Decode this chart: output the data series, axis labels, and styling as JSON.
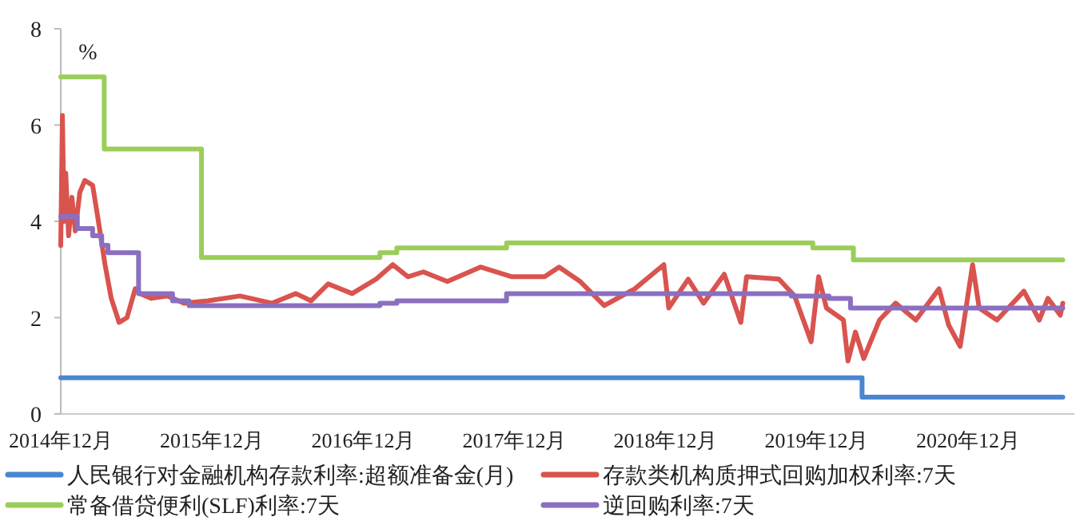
{
  "chart_data": {
    "type": "line",
    "ylabel": "%",
    "ylim": [
      0,
      8
    ],
    "yticks": [
      0,
      2,
      4,
      6,
      8
    ],
    "xlim": [
      "2014-12-01",
      "2021-08-15"
    ],
    "xticks": [
      {
        "value": "2014-12-01",
        "label": "2014年12月"
      },
      {
        "value": "2015-12-01",
        "label": "2015年12月"
      },
      {
        "value": "2016-12-01",
        "label": "2016年12月"
      },
      {
        "value": "2017-12-01",
        "label": "2017年12月"
      },
      {
        "value": "2018-12-01",
        "label": "2018年12月"
      },
      {
        "value": "2019-12-01",
        "label": "2019年12月"
      },
      {
        "value": "2020-12-01",
        "label": "2020年12月"
      }
    ],
    "legend": "bottom",
    "grid": false,
    "series": [
      {
        "name": "人民银行对金融机构存款利率:超额准备金(月)",
        "type": "step",
        "color": "#4a86d0",
        "x": [
          "2014-12-01",
          "2016-06-01",
          "2018-06-01",
          "2020-03-20",
          "2021-07-18"
        ],
        "values": [
          0.75,
          0.75,
          0.75,
          0.35,
          0.35
        ]
      },
      {
        "name": "存款类机构质押式回购加权利率:7天",
        "color": "#d9534f",
        "x": [
          "2014-12-01",
          "2014-12-05",
          "2014-12-09",
          "2014-12-13",
          "2014-12-20",
          "2014-12-28",
          "2015-01-05",
          "2015-01-16",
          "2015-01-28",
          "2015-02-16",
          "2015-03-02",
          "2015-03-18",
          "2015-04-02",
          "2015-04-21",
          "2015-05-10",
          "2015-05-30",
          "2015-06-11",
          "2015-07-08",
          "2015-08-16",
          "2015-09-25",
          "2015-11-21",
          "2016-02-07",
          "2016-04-24",
          "2016-06-21",
          "2016-07-28",
          "2016-09-07",
          "2016-11-04",
          "2017-01-01",
          "2017-02-10",
          "2017-03-19",
          "2017-04-25",
          "2017-06-22",
          "2017-09-10",
          "2017-11-25",
          "2018-02-12",
          "2018-03-19",
          "2018-05-09",
          "2018-07-06",
          "2018-09-18",
          "2018-11-27",
          "2018-12-09",
          "2019-01-25",
          "2019-03-03",
          "2019-04-22",
          "2019-06-01",
          "2019-06-15",
          "2019-09-01",
          "2019-10-09",
          "2019-11-18",
          "2019-12-06",
          "2019-12-25",
          "2020-02-04",
          "2020-02-15",
          "2020-03-04",
          "2020-03-24",
          "2020-05-01",
          "2020-06-09",
          "2020-07-28",
          "2020-09-22",
          "2020-10-15",
          "2020-11-12",
          "2020-12-12",
          "2020-12-28",
          "2021-02-09",
          "2021-04-15",
          "2021-05-22",
          "2021-06-12",
          "2021-07-12",
          "2021-07-18"
        ],
        "values": [
          3.5,
          6.2,
          4.0,
          5.0,
          3.7,
          4.5,
          3.8,
          4.6,
          4.85,
          4.75,
          4.0,
          3.1,
          2.4,
          1.9,
          2.0,
          2.6,
          2.5,
          2.4,
          2.45,
          2.3,
          2.35,
          2.45,
          2.3,
          2.5,
          2.35,
          2.7,
          2.5,
          2.8,
          3.1,
          2.85,
          2.95,
          2.75,
          3.05,
          2.85,
          2.85,
          3.05,
          2.75,
          2.25,
          2.6,
          3.1,
          2.2,
          2.8,
          2.3,
          2.9,
          1.9,
          2.85,
          2.8,
          2.45,
          1.5,
          2.85,
          2.2,
          1.95,
          1.1,
          1.7,
          1.15,
          1.95,
          2.3,
          1.95,
          2.6,
          1.85,
          1.4,
          3.1,
          2.2,
          1.95,
          2.55,
          1.95,
          2.4,
          2.05,
          2.3
        ]
      },
      {
        "name": "常备借贷便利(SLF)利率:7天",
        "type": "step",
        "color": "#9bcd5a",
        "x": [
          "2014-12-01",
          "2015-03-16",
          "2015-11-06",
          "2017-01-10",
          "2017-02-20",
          "2017-11-12",
          "2019-11-22",
          "2020-02-28",
          "2021-07-18"
        ],
        "values": [
          7,
          5.5,
          3.25,
          3.35,
          3.45,
          3.55,
          3.45,
          3.2,
          3.2
        ]
      },
      {
        "name": "逆回购利率:7天",
        "type": "step",
        "color": "#8a6fc0",
        "x": [
          "2014-12-01",
          "2015-01-10",
          "2015-02-16",
          "2015-03-10",
          "2015-03-25",
          "2015-06-07",
          "2015-08-28",
          "2015-10-07",
          "2017-01-10",
          "2017-02-20",
          "2017-11-12",
          "2019-10-01",
          "2019-12-31",
          "2020-02-21",
          "2021-07-18"
        ],
        "values": [
          4.1,
          3.85,
          3.7,
          3.5,
          3.35,
          2.5,
          2.35,
          2.25,
          2.3,
          2.35,
          2.5,
          2.45,
          2.4,
          2.2,
          2.2
        ]
      }
    ]
  }
}
